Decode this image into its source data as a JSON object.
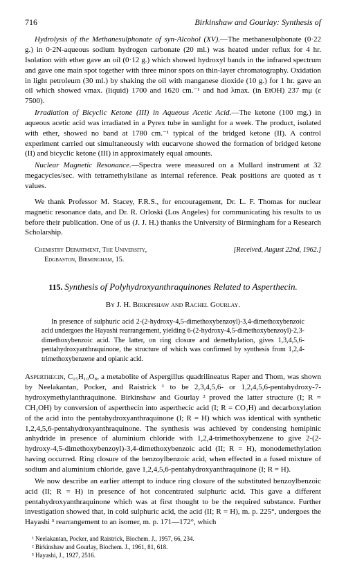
{
  "header": {
    "page": "716",
    "running": "Birkinshaw and Gourlay: Synthesis of"
  },
  "sec1": {
    "title": "Hydrolysis of the Methanesulphonate of syn-Alcohol (XV).",
    "body": "—The methanesulphonate (0·22 g.) in 0·2N-aqueous sodium hydrogen carbonate (20 ml.) was heated under reflux for 4 hr. Isolation with ether gave an oil (0·12 g.) which showed hydroxyl bands in the infrared spectrum and gave one main spot together with three minor spots on thin-layer chromatography. Oxidation in light petroleum (30 ml.) by shaking the oil with manganese dioxide (10 g.) for 1 hr. gave an oil which showed νmax. (liquid) 1700 and 1620 cm.⁻¹ and had λmax. (in EtOH) 237 mμ (ε 7500)."
  },
  "sec2": {
    "title": "Irradiation of Bicyclic Ketone (III) in Aqueous Acetic Acid.",
    "body": "—The ketone (100 mg.) in aqueous acetic acid was irradiated in a Pyrex tube in sunlight for a week. The product, isolated with ether, showed no band at 1780 cm.⁻¹ typical of the bridged ketone (II). A control experiment carried out simultaneously with eucarvone showed the formation of bridged ketone (II) and bicyclic ketone (III) in approximately equal amounts."
  },
  "sec3": {
    "title": "Nuclear Magnetic Resonance.",
    "body": "—Spectra were measured on a Mullard instrument at 32 megacycles/sec. with tetramethylsilane as internal reference. Peak positions are quoted as τ values."
  },
  "ack": "We thank Professor M. Stacey, F.R.S., for encouragement, Dr. L. F. Thomas for nuclear magnetic resonance data, and Dr. R. Orloski (Los Angeles) for communicating his results to us before their publication. One of us (J. J. H.) thanks the University of Birmingham for a Research Scholarship.",
  "aff": {
    "line1": "Chemistry Department, The University,",
    "line2": "Edgbaston, Birmingham, 15.",
    "received": "[Received, August 22nd, 1962.]"
  },
  "article": {
    "number": "115.",
    "title": "Synthesis of Polyhydroxyanthraquinones Related to Asperthecin."
  },
  "authors": "By J. H. Birkinshaw and Rachel Gourlay.",
  "abstract": "In presence of sulphuric acid 2-(2-hydroxy-4,5-dimethoxybenzoyl)-3,4-dimethoxybenzoic acid undergoes the Hayashi rearrangement, yielding 6-(2-hydroxy-4,5-dimethoxybenzoyl)-2,3-dimethoxybenzoic acid. The latter, on ring closure and demethylation, gives 1,3,4,5,6-pentahydroxyanthraquinone, the structure of which was confirmed by synthesis from 1,2,4-trimethoxybenzene and opianic acid.",
  "body1": {
    "lead": "Asperthecin,",
    "text": " C₁₅H₁₀O₈, a metabolite of Aspergillus quadrilineatus Raper and Thom, was shown by Neelakantan, Pocker, and Raistrick ¹ to be 2,3,4,5,6- or 1,2,4,5,6-pentahydroxy-7-hydroxymethylanthraquinone. Birkinshaw and Gourlay ² proved the latter structure (I; R = CH₂OH) by conversion of asperthecin into asperthecic acid (I; R = CO₂H) and decarboxylation of the acid into the pentahydroxyanthraquinone (I; R = H) which was identical with synthetic 1,2,4,5,6-pentahydroxyanthraquinone. The synthesis was achieved by condensing hemipinic anhydride in presence of aluminium chloride with 1,2,4-trimethoxybenzene to give 2-(2-hydroxy-4,5-dimethoxybenzoyl)-3,4-dimethoxybenzoic acid (II; R = H), monodemethylation having occurred. Ring closure of the benzoylbenzoic acid, when effected in a fused mixture of sodium and aluminium chloride, gave 1,2,4,5,6-pentahydroxyanthraquinone (I; R = H)."
  },
  "body2": "We now describe an earlier attempt to induce ring closure of the substituted benzoylbenzoic acid (II; R = H) in presence of hot concentrated sulphuric acid. This gave a different pentahydroxyanthraquinone which was at first thought to be the required substance. Further investigation showed that, in cold sulphuric acid, the acid (II; R = H), m. p. 225°, undergoes the Hayashi ³ rearrangement to an isomer, m. p. 171—172°, which",
  "footnotes": {
    "f1": "¹ Neelakantan, Pocker, and Raistrick, Biochem. J., 1957, 66, 234.",
    "f2": "² Birkinshaw and Gourlay, Biochem. J., 1961, 81, 618.",
    "f3": "³ Hayashi, J., 1927, 2516."
  }
}
